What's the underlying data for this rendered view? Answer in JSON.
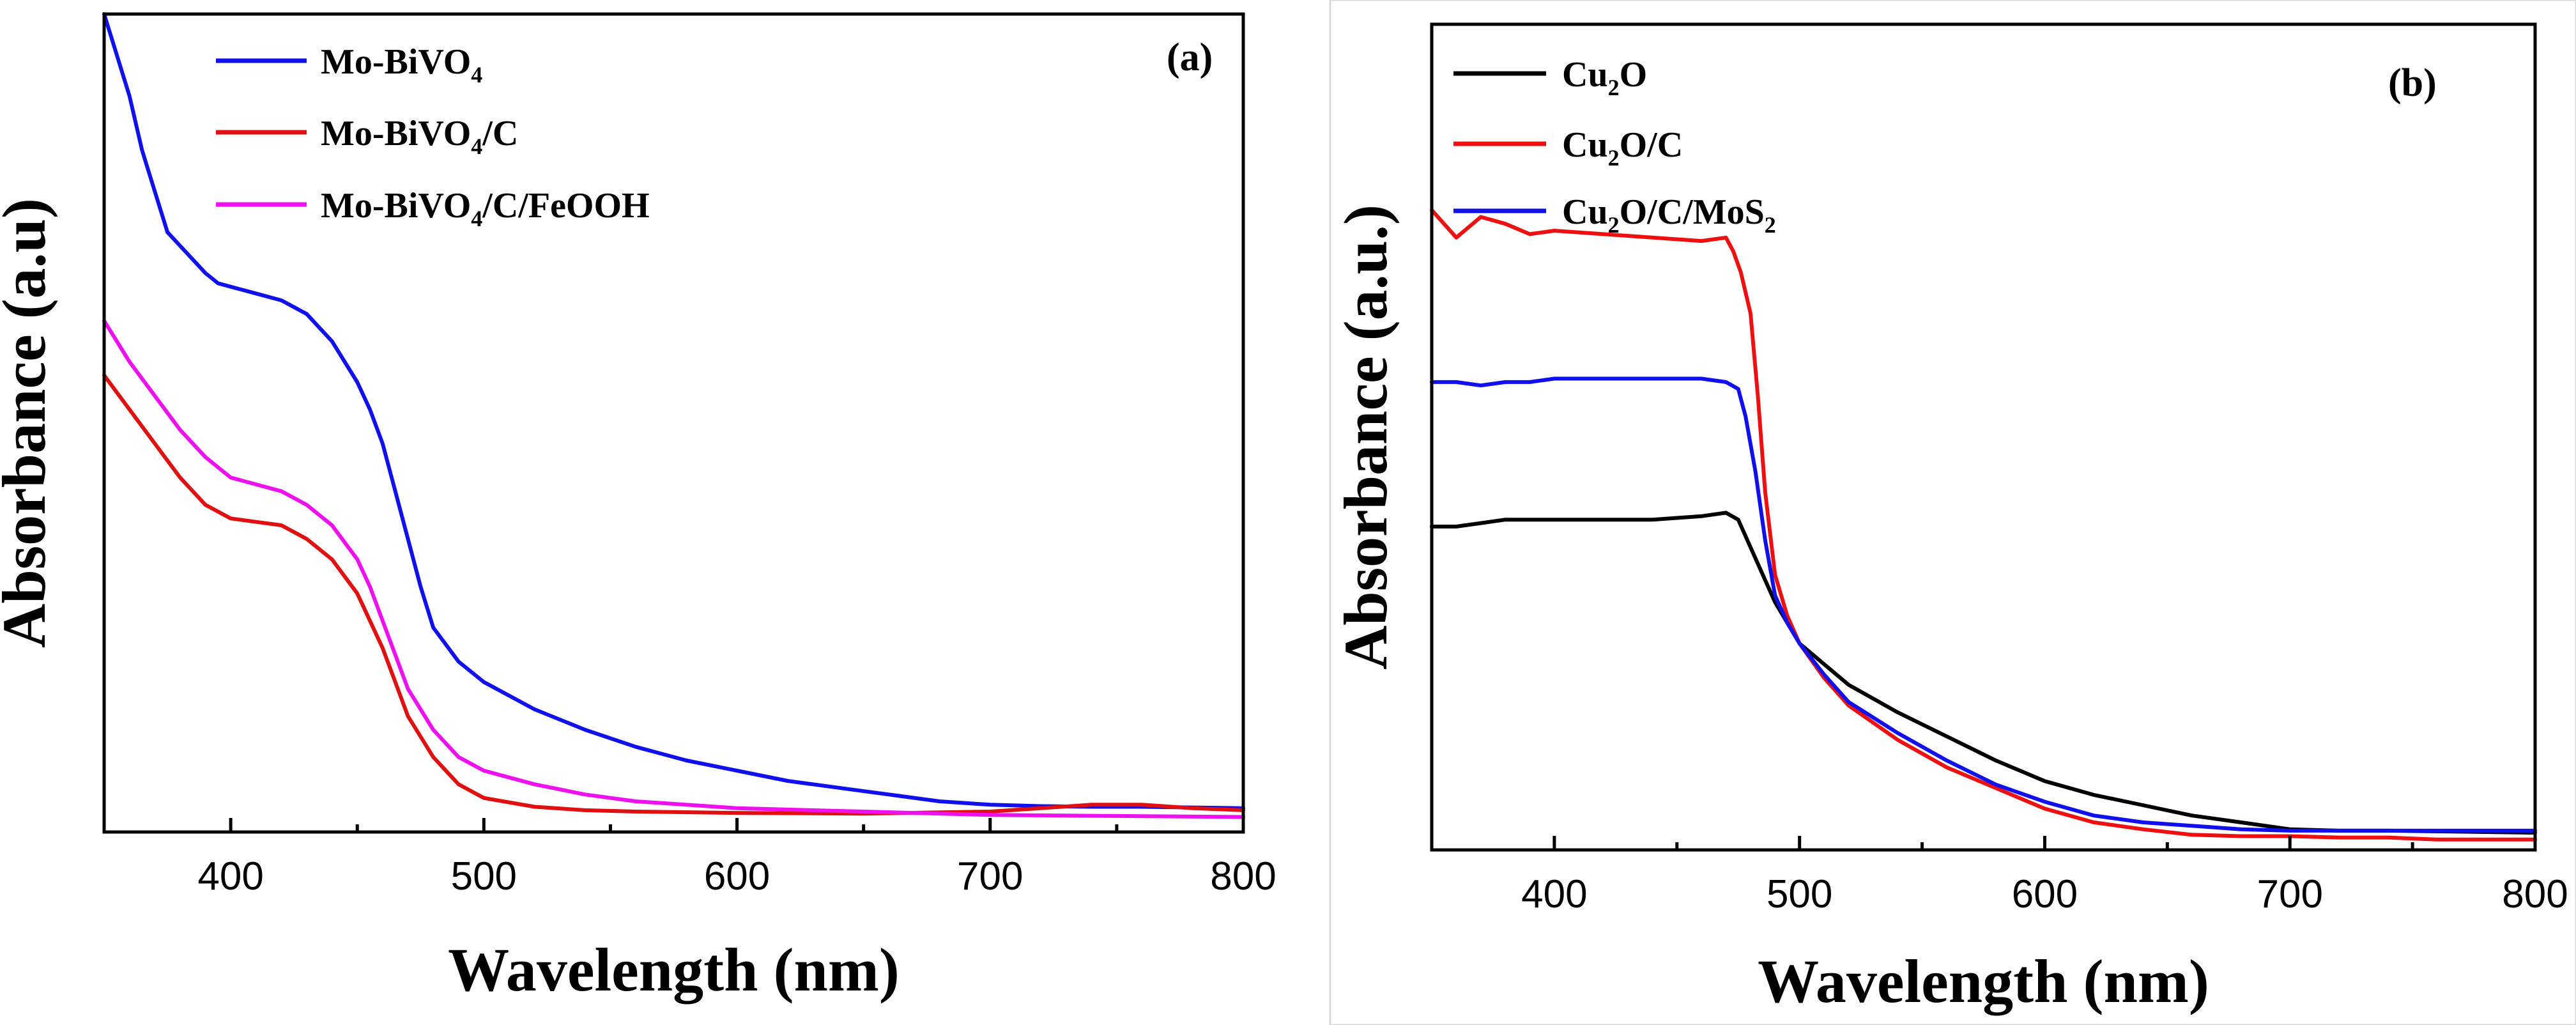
{
  "chart_data": [
    {
      "type": "line",
      "panel_label": "(a)",
      "title": "",
      "xlabel": "Wavelength (nm)",
      "ylabel": "Absorbance (a.u)",
      "xlim": [
        350,
        800
      ],
      "ylim": [
        0,
        1.2
      ],
      "xticks": [
        400,
        500,
        600,
        700,
        800
      ],
      "legend_position": "top-left",
      "series": [
        {
          "name": "Mo-BiVO4",
          "legend_parts": [
            "Mo-BiVO",
            "4",
            ""
          ],
          "color": "#1010ee",
          "x": [
            350,
            355,
            360,
            365,
            370,
            375,
            380,
            385,
            390,
            395,
            400,
            410,
            420,
            430,
            440,
            450,
            455,
            460,
            465,
            470,
            475,
            480,
            490,
            500,
            520,
            540,
            560,
            580,
            600,
            620,
            640,
            660,
            680,
            700,
            720,
            740,
            760,
            780,
            800
          ],
          "y": [
            1.2,
            1.14,
            1.08,
            1.0,
            0.94,
            0.88,
            0.86,
            0.84,
            0.82,
            0.805,
            0.8,
            0.79,
            0.78,
            0.76,
            0.72,
            0.66,
            0.62,
            0.57,
            0.5,
            0.43,
            0.36,
            0.3,
            0.25,
            0.22,
            0.18,
            0.15,
            0.125,
            0.105,
            0.09,
            0.075,
            0.065,
            0.055,
            0.045,
            0.04,
            0.038,
            0.037,
            0.037,
            0.036,
            0.035
          ]
        },
        {
          "name": "Mo-BiVO4/C",
          "legend_parts": [
            "Mo-BiVO",
            "4",
            "/C"
          ],
          "color": "#e01010",
          "x": [
            350,
            360,
            370,
            380,
            390,
            400,
            410,
            420,
            430,
            440,
            450,
            455,
            460,
            465,
            470,
            480,
            490,
            500,
            520,
            540,
            560,
            600,
            650,
            700,
            720,
            740,
            760,
            780,
            800
          ],
          "y": [
            0.67,
            0.62,
            0.57,
            0.52,
            0.48,
            0.46,
            0.455,
            0.45,
            0.43,
            0.4,
            0.35,
            0.31,
            0.27,
            0.22,
            0.17,
            0.11,
            0.07,
            0.05,
            0.037,
            0.032,
            0.03,
            0.028,
            0.027,
            0.03,
            0.035,
            0.04,
            0.04,
            0.035,
            0.032
          ]
        },
        {
          "name": "Mo-BiVO4/C/FeOOH",
          "legend_parts": [
            "Mo-BiVO",
            "4",
            "/C/FeOOH"
          ],
          "color": "#ee10ee",
          "x": [
            350,
            360,
            370,
            380,
            390,
            400,
            410,
            420,
            430,
            440,
            450,
            455,
            460,
            465,
            470,
            480,
            490,
            500,
            520,
            540,
            560,
            600,
            650,
            700,
            800
          ],
          "y": [
            0.75,
            0.69,
            0.64,
            0.59,
            0.55,
            0.52,
            0.51,
            0.5,
            0.48,
            0.45,
            0.4,
            0.36,
            0.31,
            0.26,
            0.21,
            0.15,
            0.11,
            0.09,
            0.07,
            0.055,
            0.045,
            0.035,
            0.03,
            0.025,
            0.022
          ]
        }
      ]
    },
    {
      "type": "line",
      "panel_label": "(b)",
      "title": "",
      "xlabel": "Wavelength (nm)",
      "ylabel": "Absorbance (a.u.)",
      "xlim": [
        350,
        800
      ],
      "ylim": [
        0,
        1.2
      ],
      "xticks": [
        400,
        500,
        600,
        700,
        800
      ],
      "legend_position": "top-left",
      "series": [
        {
          "name": "Cu2O",
          "legend_parts": [
            "Cu",
            "2",
            "O"
          ],
          "color": "#000000",
          "x": [
            350,
            360,
            370,
            380,
            390,
            400,
            420,
            440,
            460,
            470,
            475,
            480,
            485,
            490,
            495,
            500,
            510,
            520,
            540,
            560,
            580,
            600,
            620,
            640,
            660,
            680,
            700,
            720,
            740,
            760,
            780,
            800
          ],
          "y": [
            0.47,
            0.47,
            0.475,
            0.48,
            0.48,
            0.48,
            0.48,
            0.48,
            0.485,
            0.49,
            0.48,
            0.44,
            0.4,
            0.36,
            0.33,
            0.3,
            0.27,
            0.24,
            0.2,
            0.165,
            0.13,
            0.1,
            0.08,
            0.065,
            0.05,
            0.04,
            0.03,
            0.028,
            0.028,
            0.027,
            0.026,
            0.025
          ]
        },
        {
          "name": "Cu2O/C",
          "legend_parts": [
            "Cu",
            "2",
            "O/C"
          ],
          "color": "#ee1010",
          "x": [
            350,
            360,
            370,
            380,
            390,
            400,
            420,
            440,
            460,
            470,
            473,
            476,
            480,
            483,
            486,
            490,
            495,
            500,
            510,
            520,
            540,
            560,
            580,
            600,
            620,
            640,
            660,
            680,
            700,
            720,
            740,
            760,
            780,
            800
          ],
          "y": [
            0.93,
            0.89,
            0.92,
            0.91,
            0.895,
            0.9,
            0.895,
            0.89,
            0.885,
            0.89,
            0.87,
            0.84,
            0.78,
            0.66,
            0.52,
            0.4,
            0.34,
            0.3,
            0.25,
            0.21,
            0.16,
            0.12,
            0.09,
            0.06,
            0.04,
            0.03,
            0.022,
            0.02,
            0.02,
            0.018,
            0.018,
            0.015,
            0.015,
            0.015
          ]
        },
        {
          "name": "Cu2O/C/MoS2",
          "legend_parts": [
            "Cu",
            "2",
            "O/C/MoS"
          ],
          "legend_tail_sub": "2",
          "color": "#1010ee",
          "x": [
            350,
            360,
            370,
            380,
            390,
            400,
            420,
            440,
            460,
            470,
            475,
            478,
            482,
            486,
            490,
            495,
            500,
            510,
            520,
            540,
            560,
            580,
            600,
            620,
            640,
            660,
            680,
            700,
            720,
            740,
            760,
            780,
            800
          ],
          "y": [
            0.68,
            0.68,
            0.675,
            0.68,
            0.68,
            0.685,
            0.685,
            0.685,
            0.685,
            0.68,
            0.67,
            0.63,
            0.55,
            0.45,
            0.37,
            0.33,
            0.3,
            0.255,
            0.215,
            0.17,
            0.13,
            0.095,
            0.07,
            0.05,
            0.04,
            0.035,
            0.03,
            0.028,
            0.028,
            0.028,
            0.028,
            0.028,
            0.028
          ]
        }
      ]
    }
  ]
}
